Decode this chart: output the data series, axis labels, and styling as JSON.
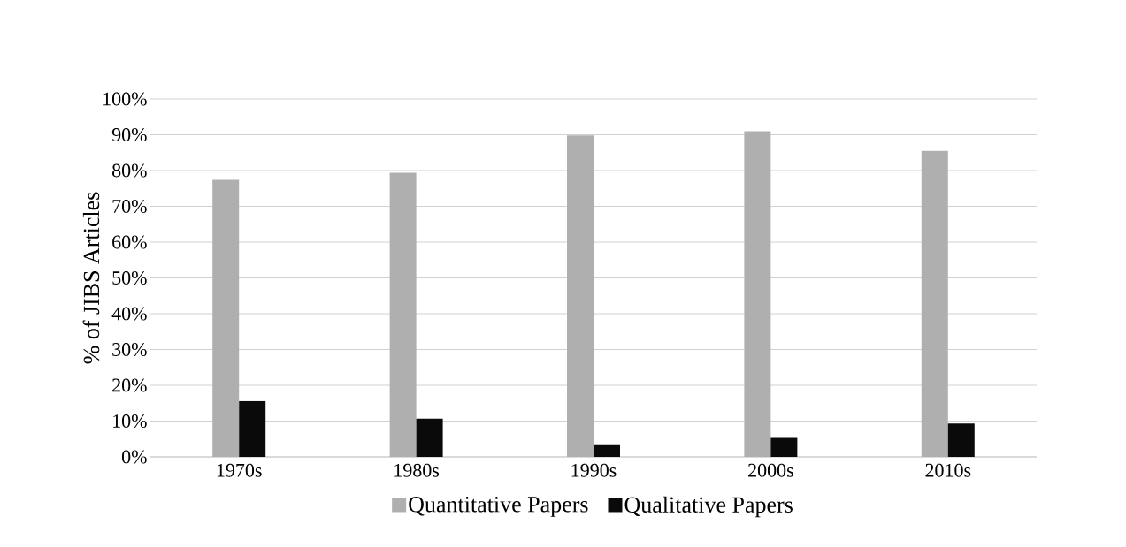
{
  "chart_data": {
    "type": "bar",
    "ylabel": "% of JIBS Articles",
    "categories": [
      "1970s",
      "1980s",
      "1990s",
      "2000s",
      "2010s"
    ],
    "series": [
      {
        "name": "Quantitative Papers",
        "color": "#afafaf",
        "values": [
          77.4,
          79.4,
          89.8,
          91.0,
          85.5
        ]
      },
      {
        "name": "Qualitative Papers",
        "color": "#0a0a0a",
        "values": [
          15.6,
          10.7,
          3.3,
          5.3,
          9.3
        ]
      }
    ],
    "ylim": [
      0,
      100
    ],
    "yticks": [
      {
        "value": 0,
        "label": "0%"
      },
      {
        "value": 10,
        "label": "10%"
      },
      {
        "value": 20,
        "label": "20%"
      },
      {
        "value": 30,
        "label": "30%"
      },
      {
        "value": 40,
        "label": "40%"
      },
      {
        "value": 50,
        "label": "50%"
      },
      {
        "value": 60,
        "label": "60%"
      },
      {
        "value": 70,
        "label": "70%"
      },
      {
        "value": 80,
        "label": "80%"
      },
      {
        "value": 90,
        "label": "90%"
      },
      {
        "value": 100,
        "label": "100%"
      }
    ],
    "grid": "y",
    "legend": "bottom"
  }
}
